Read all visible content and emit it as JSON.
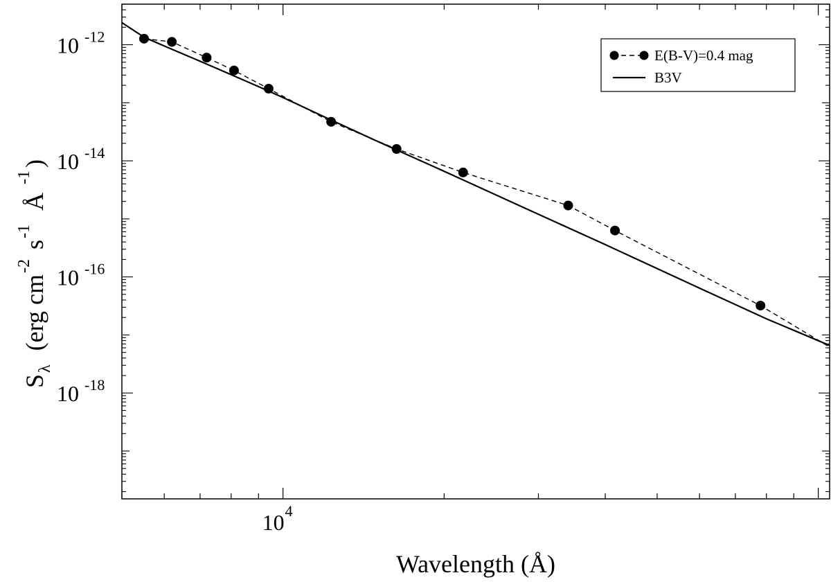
{
  "chart_data": {
    "type": "line",
    "title": "",
    "xlabel": "Wavelength (Å)",
    "ylabel": {
      "symbol": "S",
      "subscript": "λ",
      "units": "(erg cm",
      "units_parts": [
        "(erg cm",
        "-2",
        "s",
        "-1",
        "Å",
        "-1",
        ")"
      ]
    },
    "x_scale": "log",
    "y_scale": "log",
    "xlim": [
      5000,
      105000
    ],
    "ylim": [
      1.5e-20,
      5e-12
    ],
    "x_ticks": [
      {
        "value": 10000,
        "base": "10",
        "exp": "4"
      }
    ],
    "y_ticks": [
      {
        "value": 1e-12,
        "base": "10",
        "exp": "-12"
      },
      {
        "value": 1e-14,
        "base": "10",
        "exp": "-14"
      },
      {
        "value": 1e-16,
        "base": "10",
        "exp": "-16"
      },
      {
        "value": 1e-18,
        "base": "10",
        "exp": "-18"
      }
    ],
    "grid": false,
    "legend_position": "top-right",
    "series": [
      {
        "name": "E(B-V)=0.4 mag",
        "style": "dashed-markers",
        "color": "#000000",
        "x": [
          5500,
          6200,
          7200,
          8100,
          9400,
          12300,
          16300,
          21700,
          34100,
          41700,
          78000,
          108000
        ],
        "y": [
          1.27e-12,
          1.12e-12,
          6e-13,
          3.6e-13,
          1.75e-13,
          4.7e-14,
          1.6e-14,
          6.3e-15,
          1.7e-15,
          6.3e-16,
          3.2e-17,
          5.3e-18
        ]
      },
      {
        "name": "B3V",
        "style": "solid",
        "color": "#000000",
        "x": [
          5000,
          5500,
          6000,
          7000,
          8000,
          9000,
          10000,
          12000,
          15000,
          20000,
          30000,
          40000,
          60000,
          80000,
          105000
        ],
        "y": [
          2.4e-12,
          1.35e-12,
          9.5e-13,
          5.2e-13,
          3.05e-13,
          1.9e-13,
          1.23e-13,
          5.6e-14,
          2.17e-14,
          6.6e-15,
          1.2e-15,
          3.6e-16,
          6.4e-17,
          1.9e-17,
          6.6e-18
        ]
      }
    ]
  }
}
